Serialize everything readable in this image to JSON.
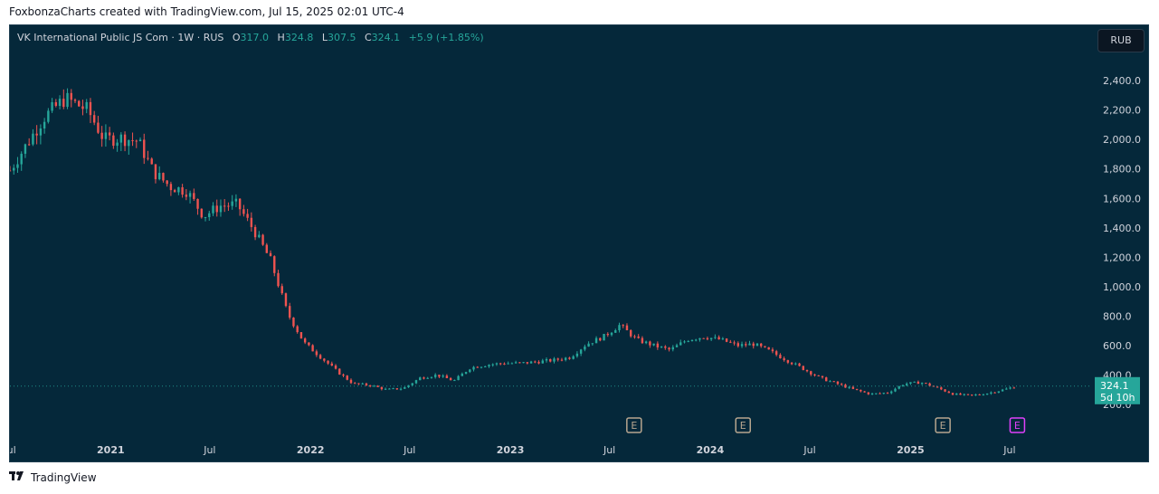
{
  "caption": "FoxbonzaCharts created with TradingView.com, Jul 15, 2025 02:01 UTC-4",
  "legend": {
    "symbol": "VK International Public JS Com · 1W · RUS",
    "o_label": "O",
    "o": "317.0",
    "h_label": "H",
    "h": "324.8",
    "l_label": "L",
    "l": "307.5",
    "c_label": "C",
    "c": "324.1",
    "change": "+5.9 (+1.85%)"
  },
  "currency": "RUB",
  "brand": {
    "name": "TradingView",
    "icon": "tradingview-logo-icon"
  },
  "colors": {
    "background": "#05283a",
    "up": "#26a69a",
    "down": "#ef5350",
    "axis_text": "#d1d4dc",
    "last_price_bg": "#26a69a",
    "earnings_marker": "#b7a68f",
    "earnings_marker_upcoming": "#e040fb"
  },
  "chart_data": {
    "type": "candlestick",
    "interval": "1W",
    "y_ticks": [
      "200.0",
      "400.0",
      "600.0",
      "800.0",
      "1,000.0",
      "1,200.0",
      "1,400.0",
      "1,600.0",
      "1,800.0",
      "2,000.0",
      "2,200.0",
      "2,400.0"
    ],
    "x_tick_labels": [
      {
        "text": "Jul",
        "x": "2020-07-01",
        "bold": false
      },
      {
        "text": "2021",
        "x": "2021-01-01",
        "bold": true
      },
      {
        "text": "Jul",
        "x": "2021-07-01",
        "bold": false
      },
      {
        "text": "2022",
        "x": "2022-01-01",
        "bold": true
      },
      {
        "text": "Jul",
        "x": "2022-07-01",
        "bold": false
      },
      {
        "text": "2023",
        "x": "2023-01-01",
        "bold": true
      },
      {
        "text": "Jul",
        "x": "2023-07-01",
        "bold": false
      },
      {
        "text": "2024",
        "x": "2024-01-01",
        "bold": true
      },
      {
        "text": "Jul",
        "x": "2024-07-01",
        "bold": false
      },
      {
        "text": "2025",
        "x": "2025-01-01",
        "bold": true
      },
      {
        "text": "Jul",
        "x": "2025-07-01",
        "bold": false
      }
    ],
    "x_range": [
      "2020-07-01",
      "2025-09-30"
    ],
    "ylim": [
      120,
      2530
    ],
    "last_price": {
      "value": 324.1,
      "label": "324.1",
      "countdown": "5d 10h"
    },
    "earnings_markers": [
      {
        "label": "E",
        "date": "2023-08-15",
        "upcoming": false
      },
      {
        "label": "E",
        "date": "2024-03-01",
        "upcoming": false
      },
      {
        "label": "E",
        "date": "2025-03-01",
        "upcoming": false
      },
      {
        "label": "E",
        "date": "2025-07-15",
        "upcoming": true
      }
    ],
    "price_path": [
      [
        "2020-07-01",
        1790
      ],
      [
        "2020-09-01",
        2150
      ],
      [
        "2020-10-10",
        2280
      ],
      [
        "2020-11-20",
        2200
      ],
      [
        "2020-12-20",
        2000
      ],
      [
        "2021-01-20",
        2010
      ],
      [
        "2021-02-20",
        1990
      ],
      [
        "2021-03-20",
        1780
      ],
      [
        "2021-04-20",
        1680
      ],
      [
        "2021-05-20",
        1650
      ],
      [
        "2021-06-20",
        1480
      ],
      [
        "2021-07-20",
        1550
      ],
      [
        "2021-08-20",
        1560
      ],
      [
        "2021-09-20",
        1380
      ],
      [
        "2021-10-20",
        1180
      ],
      [
        "2021-11-20",
        820
      ],
      [
        "2021-12-20",
        620
      ],
      [
        "2022-01-20",
        520
      ],
      [
        "2022-02-20",
        420
      ],
      [
        "2022-03-20",
        340
      ],
      [
        "2022-04-20",
        330
      ],
      [
        "2022-05-20",
        300
      ],
      [
        "2022-06-20",
        310
      ],
      [
        "2022-07-20",
        380
      ],
      [
        "2022-08-20",
        400
      ],
      [
        "2022-09-20",
        360
      ],
      [
        "2022-10-20",
        450
      ],
      [
        "2022-11-20",
        470
      ],
      [
        "2022-12-20",
        480
      ],
      [
        "2023-01-20",
        480
      ],
      [
        "2023-02-20",
        490
      ],
      [
        "2023-03-20",
        500
      ],
      [
        "2023-04-20",
        520
      ],
      [
        "2023-05-20",
        610
      ],
      [
        "2023-06-20",
        660
      ],
      [
        "2023-07-20",
        740
      ],
      [
        "2023-08-20",
        640
      ],
      [
        "2023-09-20",
        600
      ],
      [
        "2023-10-20",
        570
      ],
      [
        "2023-11-20",
        640
      ],
      [
        "2023-12-20",
        660
      ],
      [
        "2024-01-20",
        640
      ],
      [
        "2024-02-20",
        600
      ],
      [
        "2024-03-20",
        610
      ],
      [
        "2024-04-20",
        560
      ],
      [
        "2024-05-20",
        500
      ],
      [
        "2024-06-20",
        440
      ],
      [
        "2024-07-20",
        380
      ],
      [
        "2024-08-20",
        340
      ],
      [
        "2024-09-20",
        300
      ],
      [
        "2024-10-20",
        270
      ],
      [
        "2024-11-20",
        280
      ],
      [
        "2024-12-20",
        340
      ],
      [
        "2025-01-20",
        350
      ],
      [
        "2025-02-20",
        310
      ],
      [
        "2025-03-20",
        270
      ],
      [
        "2025-04-20",
        260
      ],
      [
        "2025-05-20",
        275
      ],
      [
        "2025-06-20",
        300
      ],
      [
        "2025-07-14",
        324
      ]
    ]
  }
}
